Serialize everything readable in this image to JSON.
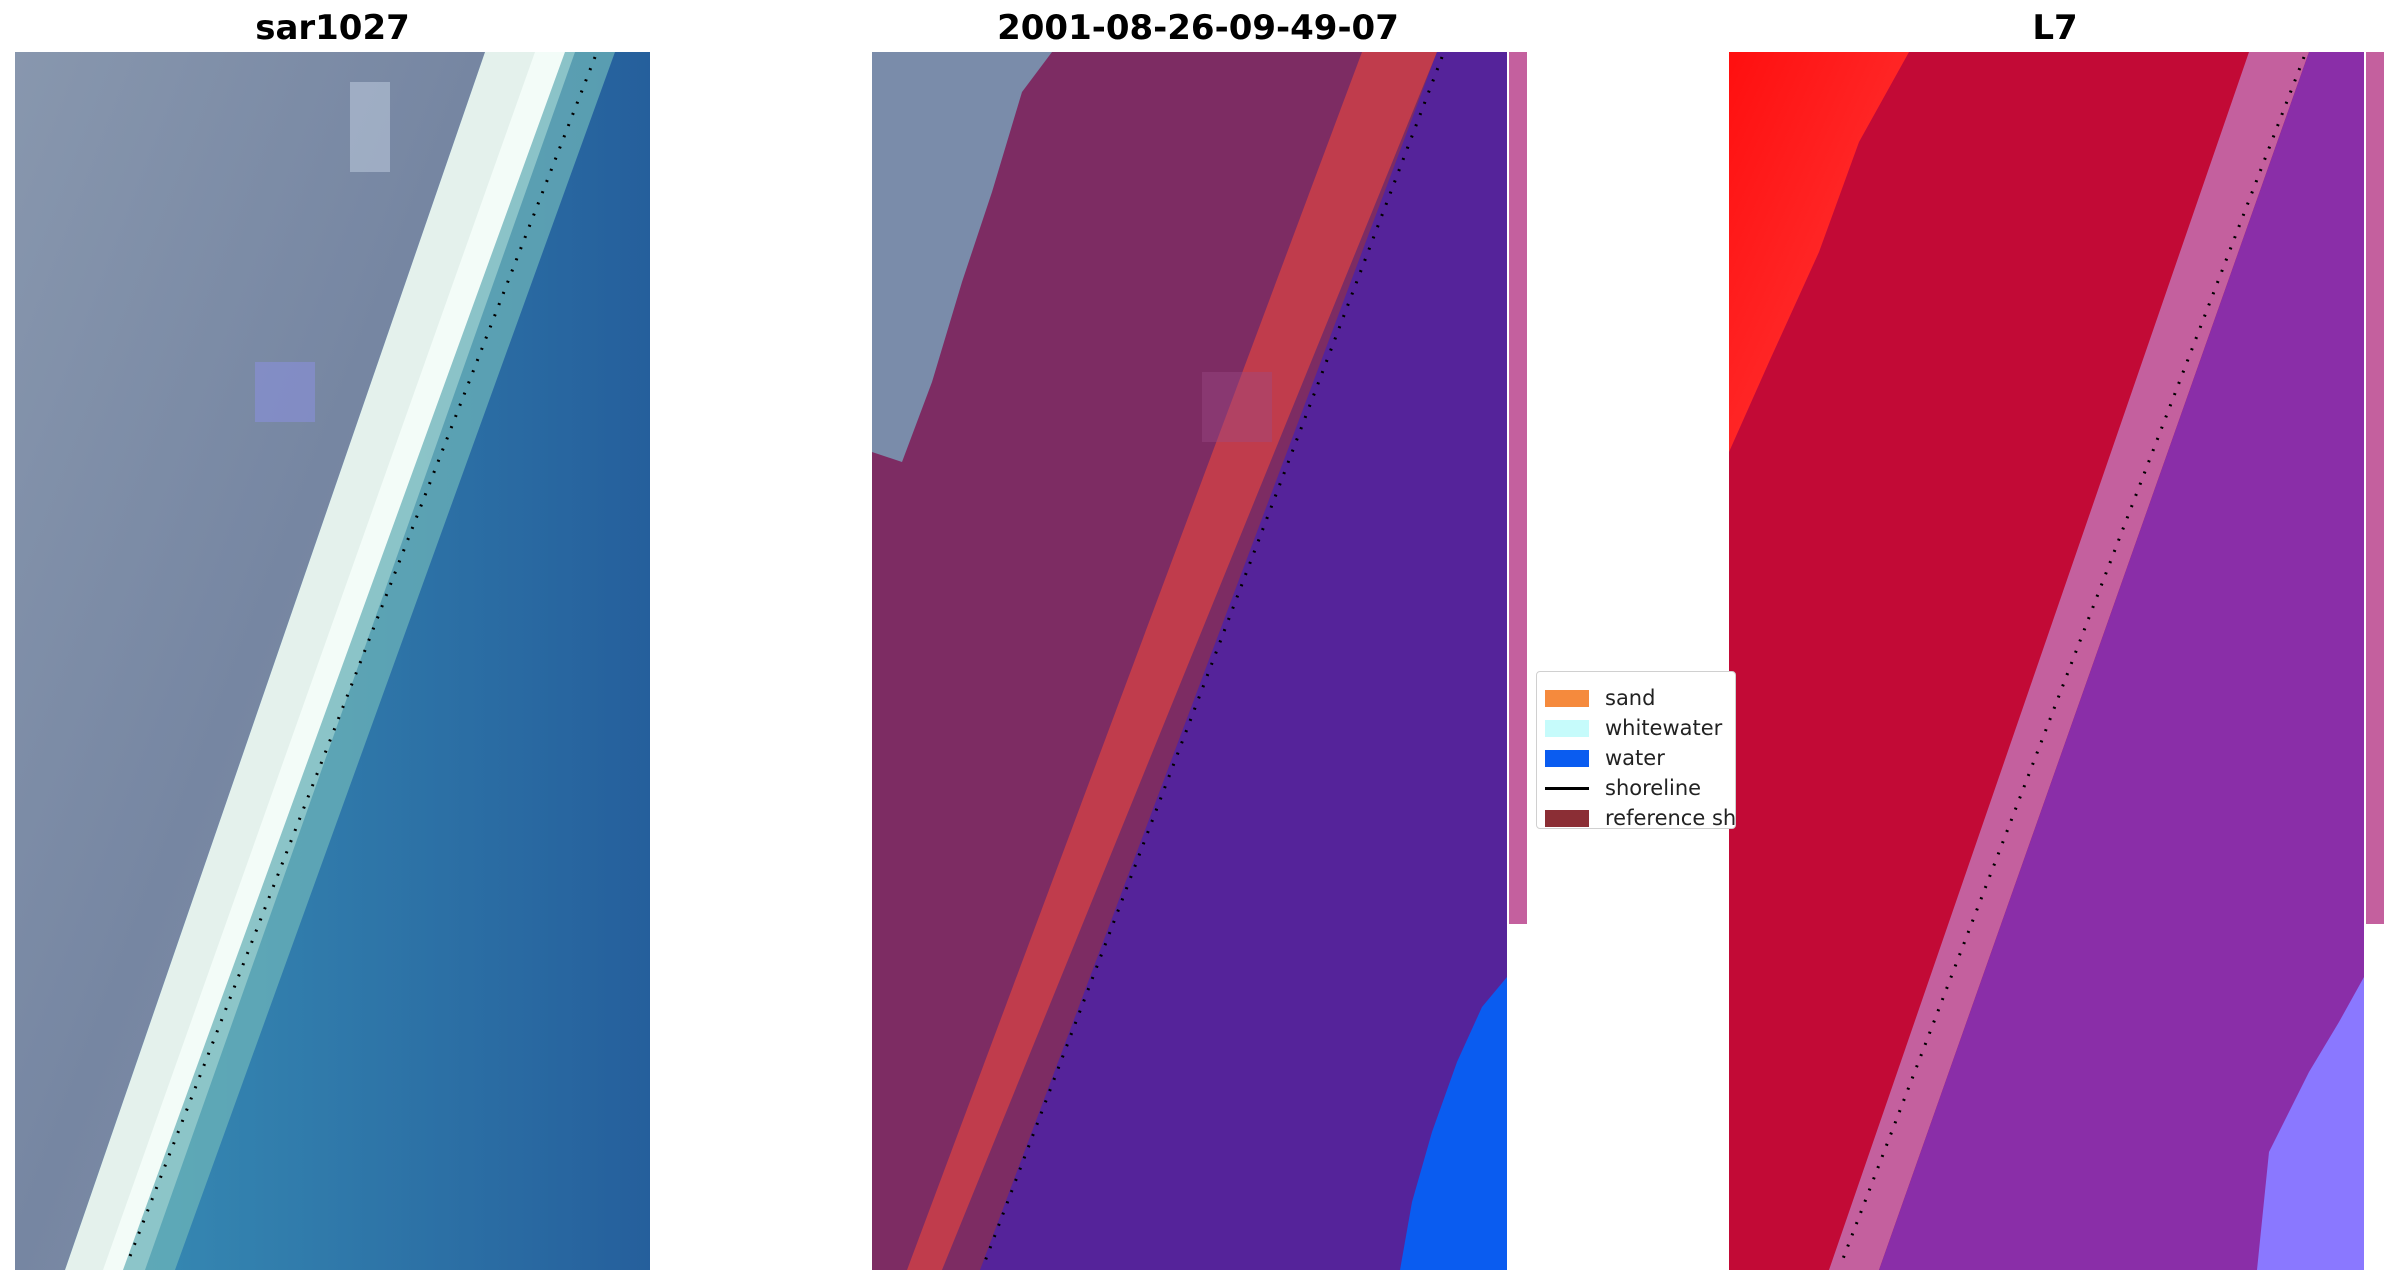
{
  "panels": [
    {
      "title": "sar1027"
    },
    {
      "title": "2001-08-26-09-49-07"
    },
    {
      "title": "L7"
    }
  ],
  "legend": {
    "items": [
      {
        "label": "sand",
        "color": "#f58a3d",
        "kind": "patch"
      },
      {
        "label": "whitewater",
        "color": "#c6fbfb",
        "kind": "patch"
      },
      {
        "label": "water",
        "color": "#0a5cf0",
        "kind": "patch"
      },
      {
        "label": "shoreline",
        "color": "#000000",
        "kind": "line"
      },
      {
        "label": "reference shoreline",
        "color": "#8b2e35",
        "kind": "patch"
      }
    ]
  },
  "colors": {
    "rgb_land": "#7f8eaa",
    "rgb_sand": "#e8f4f0",
    "rgb_water": "#2f80b3",
    "class_land": "#7c2e63",
    "class_sand_overlay": "#c03c4c",
    "class_water_overlay": "#55239a",
    "class_water": "#0a5cf0",
    "class_edge": "#c4609e",
    "index_land": "#c20a36",
    "index_land_bright": "#ff1a1a",
    "index_water": "#8a2ea8",
    "index_water_light": "#8a78ff"
  }
}
